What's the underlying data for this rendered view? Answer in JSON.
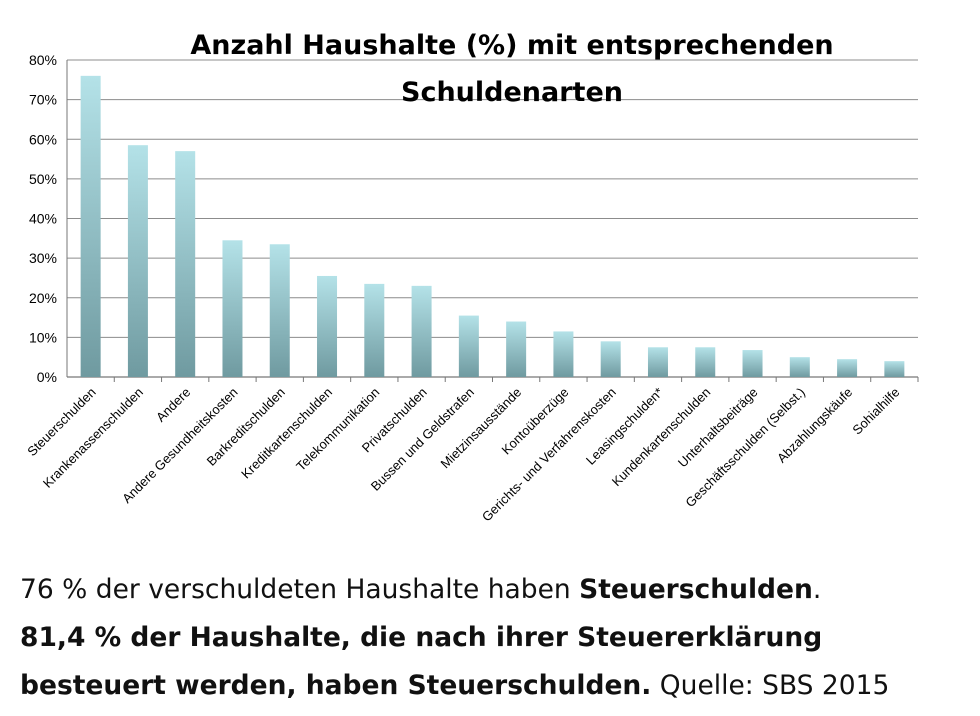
{
  "chart_data": {
    "type": "bar",
    "title_line1": "Anzahl Haushalte (%) mit entsprechenden",
    "title_line2": "Schuldenarten",
    "ylim": [
      0,
      80
    ],
    "yticks": [
      "0%",
      "10%",
      "20%",
      "30%",
      "40%",
      "50%",
      "60%",
      "70%",
      "80%"
    ],
    "grid": true,
    "categories": [
      "Steuerschulden",
      "Krankenassenschulden",
      "Andere",
      "Andere Gesundheitskosten",
      "Barkreditschulden",
      "Kreditkartenschulden",
      "Telekommunikation",
      "Privatschulden",
      "Bussen und Geldstrafen",
      "Mietzinsausstände",
      "Kontoüberzüge",
      "Gerichts- und Verfahrenskosten",
      "Leasingschulden*",
      "Kundenkartenschulden",
      "Unterhaltsbeiträge",
      "Geschäftsschulden (Selbst.)",
      "Abzahlungskäufe",
      "Sohialhilfe"
    ],
    "values": [
      76,
      58.5,
      57,
      34.5,
      33.5,
      25.5,
      23.5,
      23,
      15.5,
      14,
      11.5,
      9,
      7.5,
      7.5,
      6.8,
      5,
      4.5,
      4
    ],
    "colors": {
      "bar_top": "#b4e2e8",
      "bar_bottom": "#6f9aa0"
    }
  },
  "caption": {
    "line1_normal": "76 % der verschuldeten Haushalte haben ",
    "line1_bold": "Steuerschulden",
    "line1_end": ".",
    "line2_bold": "81,4 % der Haushalte, die nach ihrer Steuererklärung",
    "line3_bold": "besteuert werden, haben Steuerschulden.",
    "line3_normal": " Quelle: SBS 2015"
  }
}
